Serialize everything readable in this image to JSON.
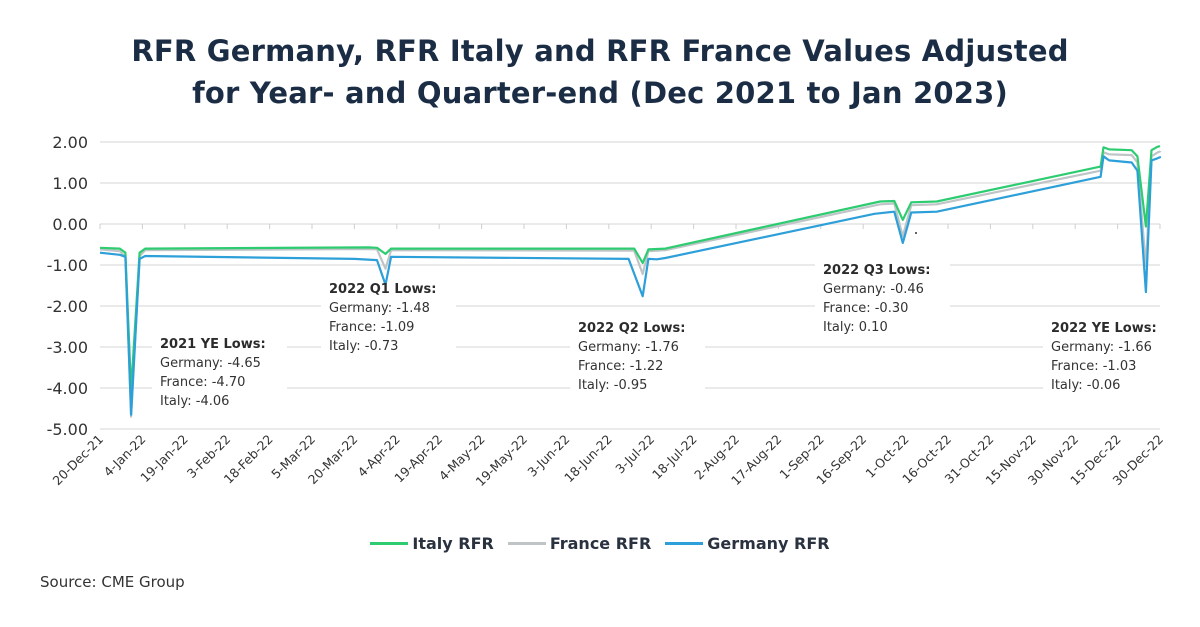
{
  "chart_data": {
    "type": "line",
    "title": "RFR Germany, RFR Italy and RFR France Values Adjusted for Year- and Quarter-end (Dec 2021 to Jan 2023)",
    "title_lines": [
      "RFR Germany, RFR Italy and RFR France Values Adjusted",
      "for Year- and Quarter-end (Dec 2021 to Jan 2023)"
    ],
    "xlabel": "",
    "ylabel": "",
    "ylim": [
      -5,
      2
    ],
    "yticks": [
      2,
      1,
      0,
      -1,
      -2,
      -3,
      -4,
      -5
    ],
    "ytick_labels": [
      "2.00",
      "1.00",
      "0.00",
      "-1.00",
      "-2.00",
      "-3.00",
      "-4.00",
      "-5.00"
    ],
    "grid": true,
    "x_start": "2021-12-20",
    "x_end": "2022-12-30",
    "xtick_labels": [
      "20-Dec-21",
      "4-Jan-22",
      "19-Jan-22",
      "3-Feb-22",
      "18-Feb-22",
      "5-Mar-22",
      "20-Mar-22",
      "4-Apr-22",
      "19-Apr-22",
      "4-May-22",
      "19-May-22",
      "3-Jun-22",
      "18-Jun-22",
      "3-Jul-22",
      "18-Jul-22",
      "2-Aug-22",
      "17-Aug-22",
      "1-Sep-22",
      "16-Sep-22",
      "1-Oct-22",
      "16-Oct-22",
      "31-Oct-22",
      "15-Nov-22",
      "30-Nov-22",
      "15-Dec-22",
      "30-Dec-22"
    ],
    "legend_position": "bottom",
    "series": [
      {
        "name": "Italy RFR",
        "color": "#2ecc71",
        "points": [
          [
            "2021-12-20",
            -0.58
          ],
          [
            "2021-12-27",
            -0.6
          ],
          [
            "2021-12-29",
            -0.7
          ],
          [
            "2021-12-31",
            -4.06
          ],
          [
            "2022-01-03",
            -0.7
          ],
          [
            "2022-01-05",
            -0.6
          ],
          [
            "2022-03-25",
            -0.57
          ],
          [
            "2022-03-28",
            -0.58
          ],
          [
            "2022-03-31",
            -0.73
          ],
          [
            "2022-04-02",
            -0.6
          ],
          [
            "2022-06-27",
            -0.6
          ],
          [
            "2022-06-30",
            -0.95
          ],
          [
            "2022-07-02",
            -0.62
          ],
          [
            "2022-07-08",
            -0.6
          ],
          [
            "2022-09-22",
            0.55
          ],
          [
            "2022-09-27",
            0.56
          ],
          [
            "2022-09-30",
            0.1
          ],
          [
            "2022-10-03",
            0.53
          ],
          [
            "2022-10-12",
            0.55
          ],
          [
            "2022-12-09",
            1.4
          ],
          [
            "2022-12-10",
            1.87
          ],
          [
            "2022-12-12",
            1.82
          ],
          [
            "2022-12-20",
            1.8
          ],
          [
            "2022-12-22",
            1.65
          ],
          [
            "2022-12-25",
            -0.06
          ],
          [
            "2022-12-27",
            1.8
          ],
          [
            "2022-12-29",
            1.88
          ],
          [
            "2023-01-02",
            1.9
          ],
          [
            "2023-01-09",
            1.9
          ]
        ]
      },
      {
        "name": "France RFR",
        "color": "#bfc4c7",
        "points": [
          [
            "2021-12-20",
            -0.62
          ],
          [
            "2021-12-27",
            -0.66
          ],
          [
            "2021-12-29",
            -0.8
          ],
          [
            "2021-12-31",
            -4.7
          ],
          [
            "2022-01-03",
            -0.78
          ],
          [
            "2022-01-05",
            -0.64
          ],
          [
            "2022-03-25",
            -0.61
          ],
          [
            "2022-03-28",
            -0.62
          ],
          [
            "2022-03-31",
            -1.09
          ],
          [
            "2022-04-02",
            -0.64
          ],
          [
            "2022-06-27",
            -0.65
          ],
          [
            "2022-06-30",
            -1.22
          ],
          [
            "2022-07-02",
            -0.66
          ],
          [
            "2022-07-08",
            -0.64
          ],
          [
            "2022-09-22",
            0.48
          ],
          [
            "2022-09-27",
            0.5
          ],
          [
            "2022-09-30",
            -0.3
          ],
          [
            "2022-10-03",
            0.46
          ],
          [
            "2022-10-12",
            0.48
          ],
          [
            "2022-12-09",
            1.3
          ],
          [
            "2022-12-10",
            1.75
          ],
          [
            "2022-12-12",
            1.7
          ],
          [
            "2022-12-20",
            1.68
          ],
          [
            "2022-12-22",
            1.5
          ],
          [
            "2022-12-25",
            -1.03
          ],
          [
            "2022-12-27",
            1.65
          ],
          [
            "2022-12-29",
            1.74
          ],
          [
            "2023-01-02",
            1.77
          ],
          [
            "2023-01-09",
            1.78
          ]
        ]
      },
      {
        "name": "Germany RFR",
        "color": "#2d9fd9",
        "points": [
          [
            "2021-12-20",
            -0.7
          ],
          [
            "2021-12-27",
            -0.75
          ],
          [
            "2021-12-29",
            -0.8
          ],
          [
            "2021-12-31",
            -4.65
          ],
          [
            "2022-01-03",
            -0.85
          ],
          [
            "2022-01-05",
            -0.78
          ],
          [
            "2022-03-20",
            -0.85
          ],
          [
            "2022-03-28",
            -0.88
          ],
          [
            "2022-03-31",
            -1.48
          ],
          [
            "2022-04-02",
            -0.8
          ],
          [
            "2022-06-25",
            -0.85
          ],
          [
            "2022-06-30",
            -1.76
          ],
          [
            "2022-07-02",
            -0.85
          ],
          [
            "2022-07-05",
            -0.86
          ],
          [
            "2022-07-08",
            -0.83
          ],
          [
            "2022-09-20",
            0.25
          ],
          [
            "2022-09-27",
            0.3
          ],
          [
            "2022-09-30",
            -0.46
          ],
          [
            "2022-10-03",
            0.28
          ],
          [
            "2022-10-12",
            0.3
          ],
          [
            "2022-12-09",
            1.15
          ],
          [
            "2022-12-10",
            1.65
          ],
          [
            "2022-12-12",
            1.55
          ],
          [
            "2022-12-20",
            1.5
          ],
          [
            "2022-12-22",
            1.3
          ],
          [
            "2022-12-25",
            -1.66
          ],
          [
            "2022-12-27",
            1.55
          ],
          [
            "2022-12-29",
            1.6
          ],
          [
            "2023-01-02",
            1.63
          ],
          [
            "2023-01-09",
            1.65
          ]
        ]
      }
    ],
    "annotations": [
      {
        "title": "2021 YE Lows:",
        "lines": [
          "Germany: -4.65",
          "France: -4.70",
          "Italy: -4.06"
        ]
      },
      {
        "title": "2022 Q1 Lows:",
        "lines": [
          "Germany: -1.48",
          "France: -1.09",
          "Italy: -0.73"
        ]
      },
      {
        "title": "2022 Q2 Lows:",
        "lines": [
          "Germany: -1.76",
          "France: -1.22",
          "Italy: -0.95"
        ]
      },
      {
        "title": "2022 Q3 Lows:",
        "lines": [
          "Germany: -0.46",
          "France: -0.30",
          "Italy: 0.10"
        ]
      },
      {
        "title": "2022 YE Lows:",
        "lines": [
          "Germany: -1.66",
          "France: -1.03",
          "Italy: -0.06"
        ]
      }
    ]
  },
  "legend": [
    {
      "label": "Italy RFR",
      "color": "#2ecc71"
    },
    {
      "label": "France RFR",
      "color": "#bfc4c7"
    },
    {
      "label": "Germany RFR",
      "color": "#2d9fd9"
    }
  ],
  "source": "Source: CME Group",
  "colors": {
    "title": "#1b2c45",
    "grid": "#e3e3e3"
  }
}
